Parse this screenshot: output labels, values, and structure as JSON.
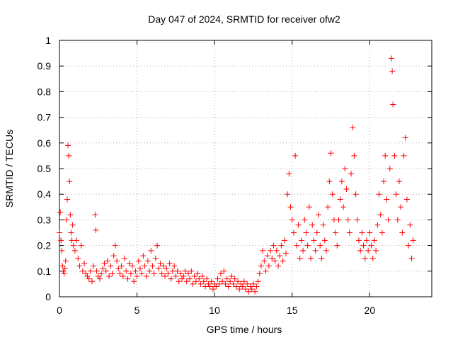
{
  "chart_data": {
    "type": "scatter",
    "title": "Day 047 of 2024, SRMTID for receiver ofw2",
    "xlabel": "GPS time / hours",
    "ylabel": "SRMTID / TECUs",
    "xlim": [
      0,
      24
    ],
    "ylim": [
      0,
      1
    ],
    "x_ticks": [
      0,
      5,
      10,
      15,
      20
    ],
    "x_tick_labels": [
      "0",
      "5",
      "10",
      "15",
      "20"
    ],
    "y_ticks": [
      0,
      0.1,
      0.2,
      0.3,
      0.4,
      0.5,
      0.6,
      0.7,
      0.8,
      0.9,
      1
    ],
    "y_tick_labels": [
      "0",
      "0.1",
      "0.2",
      "0.3",
      "0.4",
      "0.5",
      "0.6",
      "0.7",
      "0.8",
      "0.9",
      "1"
    ],
    "grid": true,
    "marker": "+",
    "color": "#ff0000",
    "series": [
      {
        "name": "SRMTID",
        "points": [
          [
            0.0,
            0.25
          ],
          [
            0.05,
            0.33
          ],
          [
            0.1,
            0.22
          ],
          [
            0.15,
            0.18
          ],
          [
            0.2,
            0.12
          ],
          [
            0.25,
            0.1
          ],
          [
            0.3,
            0.09
          ],
          [
            0.35,
            0.11
          ],
          [
            0.4,
            0.14
          ],
          [
            0.45,
            0.3
          ],
          [
            0.5,
            0.38
          ],
          [
            0.55,
            0.59
          ],
          [
            0.6,
            0.55
          ],
          [
            0.65,
            0.45
          ],
          [
            0.7,
            0.32
          ],
          [
            0.75,
            0.25
          ],
          [
            0.8,
            0.22
          ],
          [
            0.85,
            0.28
          ],
          [
            0.9,
            0.2
          ],
          [
            1.0,
            0.18
          ],
          [
            1.1,
            0.22
          ],
          [
            1.2,
            0.15
          ],
          [
            1.3,
            0.12
          ],
          [
            1.4,
            0.2
          ],
          [
            1.5,
            0.1
          ],
          [
            1.6,
            0.13
          ],
          [
            1.7,
            0.09
          ],
          [
            1.8,
            0.08
          ],
          [
            1.9,
            0.07
          ],
          [
            2.0,
            0.1
          ],
          [
            2.1,
            0.06
          ],
          [
            2.2,
            0.12
          ],
          [
            2.3,
            0.32
          ],
          [
            2.35,
            0.26
          ],
          [
            2.4,
            0.1
          ],
          [
            2.5,
            0.08
          ],
          [
            2.6,
            0.07
          ],
          [
            2.7,
            0.09
          ],
          [
            2.8,
            0.11
          ],
          [
            2.9,
            0.13
          ],
          [
            3.0,
            0.1
          ],
          [
            3.1,
            0.14
          ],
          [
            3.2,
            0.08
          ],
          [
            3.3,
            0.12
          ],
          [
            3.4,
            0.09
          ],
          [
            3.5,
            0.16
          ],
          [
            3.6,
            0.2
          ],
          [
            3.7,
            0.14
          ],
          [
            3.8,
            0.11
          ],
          [
            3.9,
            0.09
          ],
          [
            4.0,
            0.12
          ],
          [
            4.1,
            0.08
          ],
          [
            4.2,
            0.15
          ],
          [
            4.3,
            0.1
          ],
          [
            4.4,
            0.07
          ],
          [
            4.5,
            0.13
          ],
          [
            4.6,
            0.09
          ],
          [
            4.7,
            0.12
          ],
          [
            4.8,
            0.06
          ],
          [
            4.9,
            0.1
          ],
          [
            5.0,
            0.08
          ],
          [
            5.1,
            0.14
          ],
          [
            5.2,
            0.11
          ],
          [
            5.3,
            0.09
          ],
          [
            5.4,
            0.16
          ],
          [
            5.5,
            0.12
          ],
          [
            5.6,
            0.08
          ],
          [
            5.7,
            0.14
          ],
          [
            5.8,
            0.1
          ],
          [
            5.9,
            0.18
          ],
          [
            6.0,
            0.12
          ],
          [
            6.1,
            0.09
          ],
          [
            6.2,
            0.15
          ],
          [
            6.3,
            0.2
          ],
          [
            6.4,
            0.11
          ],
          [
            6.5,
            0.13
          ],
          [
            6.6,
            0.09
          ],
          [
            6.7,
            0.12
          ],
          [
            6.8,
            0.08
          ],
          [
            6.9,
            0.11
          ],
          [
            7.0,
            0.09
          ],
          [
            7.1,
            0.13
          ],
          [
            7.2,
            0.07
          ],
          [
            7.3,
            0.1
          ],
          [
            7.4,
            0.12
          ],
          [
            7.5,
            0.08
          ],
          [
            7.6,
            0.1
          ],
          [
            7.7,
            0.06
          ],
          [
            7.8,
            0.09
          ],
          [
            7.9,
            0.07
          ],
          [
            8.0,
            0.08
          ],
          [
            8.1,
            0.1
          ],
          [
            8.2,
            0.06
          ],
          [
            8.3,
            0.09
          ],
          [
            8.4,
            0.07
          ],
          [
            8.5,
            0.1
          ],
          [
            8.6,
            0.05
          ],
          [
            8.7,
            0.08
          ],
          [
            8.8,
            0.06
          ],
          [
            8.9,
            0.09
          ],
          [
            9.0,
            0.07
          ],
          [
            9.1,
            0.05
          ],
          [
            9.2,
            0.08
          ],
          [
            9.3,
            0.06
          ],
          [
            9.4,
            0.04
          ],
          [
            9.5,
            0.07
          ],
          [
            9.6,
            0.05
          ],
          [
            9.7,
            0.04
          ],
          [
            9.8,
            0.06
          ],
          [
            9.9,
            0.03
          ],
          [
            10.0,
            0.05
          ],
          [
            10.1,
            0.04
          ],
          [
            10.2,
            0.07
          ],
          [
            10.3,
            0.05
          ],
          [
            10.4,
            0.09
          ],
          [
            10.5,
            0.06
          ],
          [
            10.6,
            0.1
          ],
          [
            10.7,
            0.05
          ],
          [
            10.8,
            0.07
          ],
          [
            10.9,
            0.04
          ],
          [
            11.0,
            0.06
          ],
          [
            11.1,
            0.08
          ],
          [
            11.2,
            0.05
          ],
          [
            11.3,
            0.07
          ],
          [
            11.4,
            0.04
          ],
          [
            11.5,
            0.06
          ],
          [
            11.6,
            0.03
          ],
          [
            11.7,
            0.05
          ],
          [
            11.8,
            0.04
          ],
          [
            11.9,
            0.06
          ],
          [
            12.0,
            0.03
          ],
          [
            12.1,
            0.05
          ],
          [
            12.2,
            0.02
          ],
          [
            12.3,
            0.04
          ],
          [
            12.4,
            0.03
          ],
          [
            12.5,
            0.05
          ],
          [
            12.6,
            0.02
          ],
          [
            12.7,
            0.04
          ],
          [
            12.8,
            0.06
          ],
          [
            12.9,
            0.09
          ],
          [
            13.0,
            0.12
          ],
          [
            13.1,
            0.18
          ],
          [
            13.2,
            0.14
          ],
          [
            13.3,
            0.1
          ],
          [
            13.4,
            0.16
          ],
          [
            13.5,
            0.12
          ],
          [
            13.6,
            0.18
          ],
          [
            13.7,
            0.15
          ],
          [
            13.8,
            0.2
          ],
          [
            13.9,
            0.14
          ],
          [
            14.0,
            0.18
          ],
          [
            14.1,
            0.12
          ],
          [
            14.2,
            0.16
          ],
          [
            14.3,
            0.2
          ],
          [
            14.4,
            0.14
          ],
          [
            14.5,
            0.22
          ],
          [
            14.6,
            0.17
          ],
          [
            14.7,
            0.4
          ],
          [
            14.8,
            0.48
          ],
          [
            14.9,
            0.35
          ],
          [
            15.0,
            0.3
          ],
          [
            15.1,
            0.25
          ],
          [
            15.2,
            0.55
          ],
          [
            15.3,
            0.2
          ],
          [
            15.4,
            0.28
          ],
          [
            15.5,
            0.15
          ],
          [
            15.6,
            0.22
          ],
          [
            15.7,
            0.18
          ],
          [
            15.8,
            0.3
          ],
          [
            15.9,
            0.25
          ],
          [
            16.0,
            0.2
          ],
          [
            16.1,
            0.35
          ],
          [
            16.2,
            0.15
          ],
          [
            16.3,
            0.28
          ],
          [
            16.4,
            0.22
          ],
          [
            16.5,
            0.18
          ],
          [
            16.6,
            0.25
          ],
          [
            16.7,
            0.32
          ],
          [
            16.8,
            0.2
          ],
          [
            16.9,
            0.15
          ],
          [
            17.0,
            0.28
          ],
          [
            17.1,
            0.22
          ],
          [
            17.2,
            0.18
          ],
          [
            17.3,
            0.35
          ],
          [
            17.4,
            0.45
          ],
          [
            17.5,
            0.56
          ],
          [
            17.6,
            0.4
          ],
          [
            17.7,
            0.3
          ],
          [
            17.8,
            0.25
          ],
          [
            17.9,
            0.2
          ],
          [
            18.0,
            0.3
          ],
          [
            18.1,
            0.38
          ],
          [
            18.2,
            0.45
          ],
          [
            18.3,
            0.35
          ],
          [
            18.4,
            0.5
          ],
          [
            18.5,
            0.42
          ],
          [
            18.6,
            0.3
          ],
          [
            18.7,
            0.25
          ],
          [
            18.8,
            0.48
          ],
          [
            18.9,
            0.66
          ],
          [
            19.0,
            0.55
          ],
          [
            19.1,
            0.4
          ],
          [
            19.2,
            0.3
          ],
          [
            19.3,
            0.22
          ],
          [
            19.4,
            0.18
          ],
          [
            19.5,
            0.25
          ],
          [
            19.6,
            0.2
          ],
          [
            19.7,
            0.15
          ],
          [
            19.8,
            0.22
          ],
          [
            19.9,
            0.18
          ],
          [
            20.0,
            0.25
          ],
          [
            20.1,
            0.2
          ],
          [
            20.2,
            0.15
          ],
          [
            20.3,
            0.22
          ],
          [
            20.4,
            0.18
          ],
          [
            20.5,
            0.28
          ],
          [
            20.6,
            0.4
          ],
          [
            20.7,
            0.32
          ],
          [
            20.8,
            0.25
          ],
          [
            20.9,
            0.45
          ],
          [
            21.0,
            0.55
          ],
          [
            21.1,
            0.38
          ],
          [
            21.2,
            0.3
          ],
          [
            21.3,
            0.5
          ],
          [
            21.4,
            0.93
          ],
          [
            21.45,
            0.88
          ],
          [
            21.5,
            0.75
          ],
          [
            21.6,
            0.55
          ],
          [
            21.7,
            0.4
          ],
          [
            21.8,
            0.3
          ],
          [
            21.9,
            0.45
          ],
          [
            22.0,
            0.35
          ],
          [
            22.1,
            0.25
          ],
          [
            22.2,
            0.55
          ],
          [
            22.3,
            0.62
          ],
          [
            22.4,
            0.38
          ],
          [
            22.5,
            0.2
          ],
          [
            22.6,
            0.28
          ],
          [
            22.7,
            0.15
          ],
          [
            22.8,
            0.22
          ]
        ]
      }
    ]
  }
}
